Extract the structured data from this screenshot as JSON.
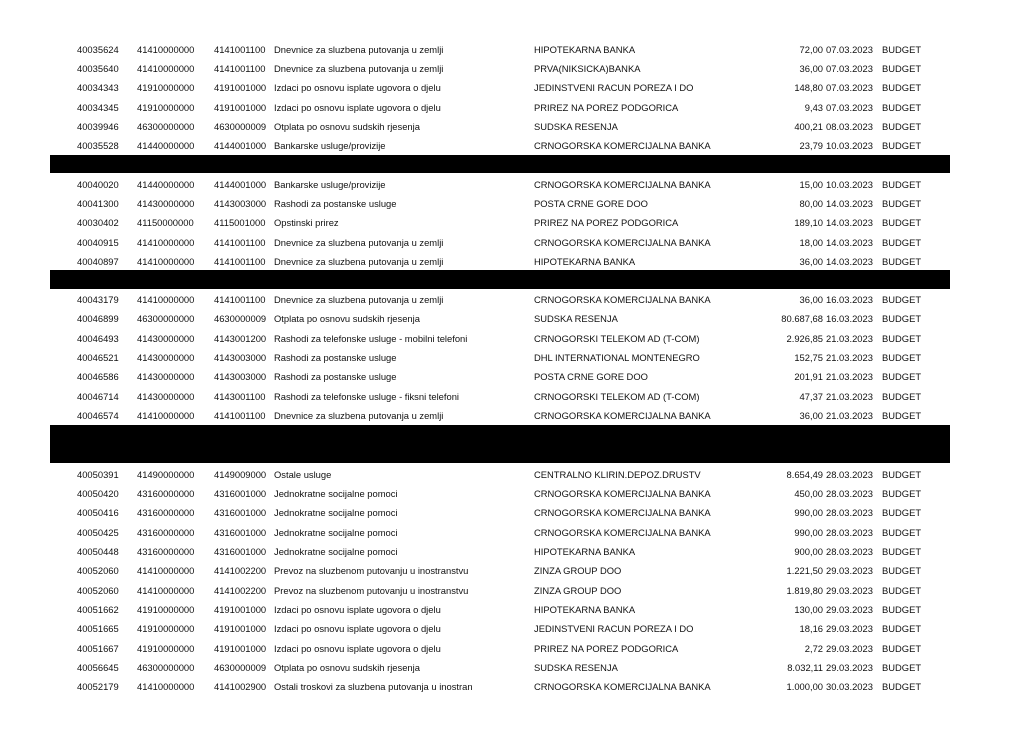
{
  "groups": [
    {
      "rows": [
        [
          "40035624",
          "41410000000",
          "4141001100",
          "Dnevnice za sluzbena putovanja u zemlji",
          "HIPOTEKARNA BANKA",
          "72,00",
          "07.03.2023",
          "BUDGET"
        ],
        [
          "40035640",
          "41410000000",
          "4141001100",
          "Dnevnice za sluzbena putovanja u zemlji",
          "PRVA(NIKSICKA)BANKA",
          "36,00",
          "07.03.2023",
          "BUDGET"
        ],
        [
          "40034343",
          "41910000000",
          "4191001000",
          "Izdaci po osnovu isplate ugovora o djelu",
          "JEDINSTVENI RACUN POREZA I DO",
          "148,80",
          "07.03.2023",
          "BUDGET"
        ],
        [
          "40034345",
          "41910000000",
          "4191001000",
          "Izdaci po osnovu isplate ugovora o djelu",
          "PRIREZ  NA POREZ PODGORICA",
          "9,43",
          "07.03.2023",
          "BUDGET"
        ],
        [
          "40039946",
          "46300000000",
          "4630000009",
          "Otplata po osnovu sudskih rjesenja",
          "SUDSKA RESENJA",
          "400,21",
          "08.03.2023",
          "BUDGET"
        ],
        [
          "40035528",
          "41440000000",
          "4144001000",
          "Bankarske usluge/provizije",
          "CRNOGORSKA KOMERCIJALNA BANKA",
          "23,79",
          "10.03.2023",
          "BUDGET"
        ]
      ]
    },
    {
      "rows": [
        [
          "40040020",
          "41440000000",
          "4144001000",
          "Bankarske usluge/provizije",
          "CRNOGORSKA KOMERCIJALNA BANKA",
          "15,00",
          "10.03.2023",
          "BUDGET"
        ],
        [
          "40041300",
          "41430000000",
          "4143003000",
          "Rashodi za postanske usluge",
          "POSTA CRNE GORE DOO",
          "80,00",
          "14.03.2023",
          "BUDGET"
        ],
        [
          "40030402",
          "41150000000",
          "4115001000",
          "Opstinski prirez",
          "PRIREZ  NA POREZ PODGORICA",
          "189,10",
          "14.03.2023",
          "BUDGET"
        ],
        [
          "40040915",
          "41410000000",
          "4141001100",
          "Dnevnice za sluzbena putovanja u zemlji",
          "CRNOGORSKA KOMERCIJALNA BANKA",
          "18,00",
          "14.03.2023",
          "BUDGET"
        ],
        [
          "40040897",
          "41410000000",
          "4141001100",
          "Dnevnice za sluzbena putovanja u zemlji",
          "HIPOTEKARNA BANKA",
          "36,00",
          "14.03.2023",
          "BUDGET"
        ]
      ]
    },
    {
      "rows": [
        [
          "40043179",
          "41410000000",
          "4141001100",
          "Dnevnice za sluzbena putovanja u zemlji",
          "CRNOGORSKA KOMERCIJALNA BANKA",
          "36,00",
          "16.03.2023",
          "BUDGET"
        ],
        [
          "40046899",
          "46300000000",
          "4630000009",
          "Otplata po osnovu sudskih rjesenja",
          "SUDSKA RESENJA",
          "80.687,68",
          "16.03.2023",
          "BUDGET"
        ],
        [
          "40046493",
          "41430000000",
          "4143001200",
          "Rashodi za telefonske usluge - mobilni telefoni",
          "CRNOGORSKI TELEKOM AD (T-COM)",
          "2.926,85",
          "21.03.2023",
          "BUDGET"
        ],
        [
          "40046521",
          "41430000000",
          "4143003000",
          "Rashodi za postanske usluge",
          "DHL INTERNATIONAL MONTENEGRO",
          "152,75",
          "21.03.2023",
          "BUDGET"
        ],
        [
          "40046586",
          "41430000000",
          "4143003000",
          "Rashodi za postanske usluge",
          "POSTA CRNE GORE DOO",
          "201,91",
          "21.03.2023",
          "BUDGET"
        ],
        [
          "40046714",
          "41430000000",
          "4143001100",
          "Rashodi za telefonske usluge - fiksni telefoni",
          "CRNOGORSKI TELEKOM AD (T-COM)",
          "47,37",
          "21.03.2023",
          "BUDGET"
        ],
        [
          "40046574",
          "41410000000",
          "4141001100",
          "Dnevnice za sluzbena putovanja u zemlji",
          "CRNOGORSKA KOMERCIJALNA BANKA",
          "36,00",
          "21.03.2023",
          "BUDGET"
        ]
      ]
    },
    {
      "rows": [
        [
          "40050391",
          "41490000000",
          "4149009000",
          "Ostale usluge",
          "CENTRALNO KLIRIN.DEPOZ.DRUSTV",
          "8.654,49",
          "28.03.2023",
          "BUDGET"
        ],
        [
          "40050420",
          "43160000000",
          "4316001000",
          "Jednokratne socijalne pomoci",
          "CRNOGORSKA KOMERCIJALNA BANKA",
          "450,00",
          "28.03.2023",
          "BUDGET"
        ],
        [
          "40050416",
          "43160000000",
          "4316001000",
          "Jednokratne socijalne pomoci",
          "CRNOGORSKA KOMERCIJALNA BANKA",
          "990,00",
          "28.03.2023",
          "BUDGET"
        ],
        [
          "40050425",
          "43160000000",
          "4316001000",
          "Jednokratne socijalne pomoci",
          "CRNOGORSKA KOMERCIJALNA BANKA",
          "990,00",
          "28.03.2023",
          "BUDGET"
        ],
        [
          "40050448",
          "43160000000",
          "4316001000",
          "Jednokratne socijalne pomoci",
          "HIPOTEKARNA BANKA",
          "900,00",
          "28.03.2023",
          "BUDGET"
        ],
        [
          "40052060",
          "41410000000",
          "4141002200",
          "Prevoz na sluzbenom putovanju u inostranstvu",
          "ZINZA GROUP DOO",
          "1.221,50",
          "29.03.2023",
          "BUDGET"
        ],
        [
          "40052060",
          "41410000000",
          "4141002200",
          "Prevoz na sluzbenom putovanju u inostranstvu",
          "ZINZA GROUP DOO",
          "1.819,80",
          "29.03.2023",
          "BUDGET"
        ],
        [
          "40051662",
          "41910000000",
          "4191001000",
          "Izdaci po osnovu isplate ugovora o djelu",
          "HIPOTEKARNA BANKA",
          "130,00",
          "29.03.2023",
          "BUDGET"
        ],
        [
          "40051665",
          "41910000000",
          "4191001000",
          "Izdaci po osnovu isplate ugovora o djelu",
          "JEDINSTVENI RACUN POREZA I DO",
          "18,16",
          "29.03.2023",
          "BUDGET"
        ],
        [
          "40051667",
          "41910000000",
          "4191001000",
          "Izdaci po osnovu isplate ugovora o djelu",
          "PRIREZ  NA POREZ PODGORICA",
          "2,72",
          "29.03.2023",
          "BUDGET"
        ],
        [
          "40056645",
          "46300000000",
          "4630000009",
          "Otplata po osnovu sudskih rjesenja",
          "SUDSKA RESENJA",
          "8.032,11",
          "29.03.2023",
          "BUDGET"
        ],
        [
          "40052179",
          "41410000000",
          "4141002900",
          "Ostali troskovi za sluzbena putovanja u inostran",
          "CRNOGORSKA KOMERCIJALNA BANKA",
          "1.000,00",
          "30.03.2023",
          "BUDGET"
        ]
      ]
    }
  ]
}
